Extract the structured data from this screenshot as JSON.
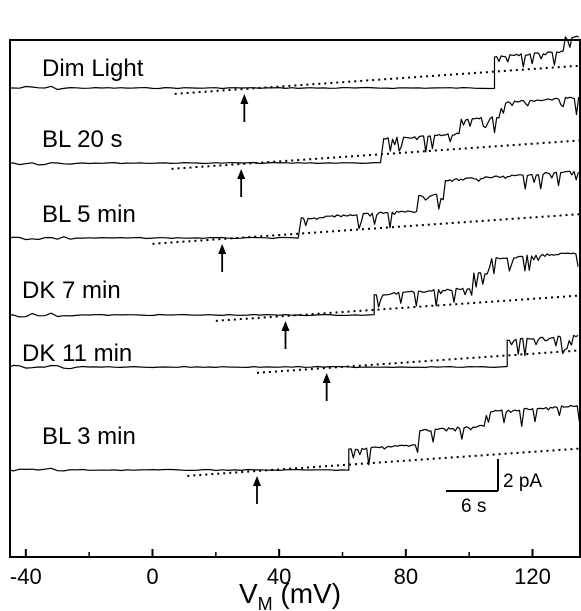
{
  "chart_data": {
    "type": "line",
    "xlabel_main": "V",
    "xlabel_sub": "M",
    "xlabel_unit": " (mV)",
    "xlim": [
      -45,
      135
    ],
    "xticks": [
      -40,
      0,
      40,
      80,
      120
    ],
    "scale_bar": {
      "current_label": "2 pA",
      "time_label": "6 s"
    },
    "series": [
      {
        "name": "Dim Light",
        "holding_level_end": 108,
        "steps": [
          108,
          130
        ],
        "threshold_mV": 29
      },
      {
        "name": "BL 20 s",
        "holding_level_end": 73,
        "steps": [
          73,
          97,
          110
        ],
        "threshold_mV": 28
      },
      {
        "name": "BL 5 min",
        "holding_level_end": 47,
        "steps": [
          47,
          84,
          92
        ],
        "threshold_mV": 22
      },
      {
        "name": "DK 7 min",
        "holding_level_end": 70,
        "steps": [
          70,
          101,
          106
        ],
        "threshold_mV": 42
      },
      {
        "name": "DK 11 min",
        "holding_level_end": 112,
        "steps": [
          112
        ],
        "threshold_mV": 55
      },
      {
        "name": "BL 3 min",
        "holding_level_end": 62,
        "steps": [
          62,
          84,
          105
        ],
        "threshold_mV": 33
      }
    ]
  }
}
